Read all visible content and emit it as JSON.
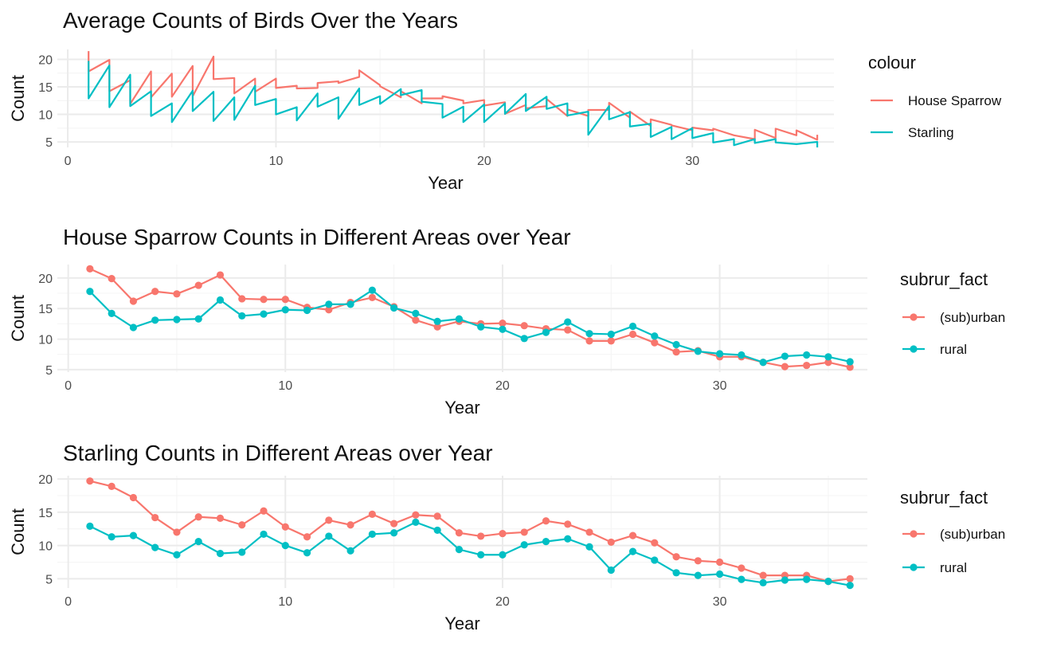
{
  "colors": {
    "red": "#F8766D",
    "teal": "#00BFC4",
    "grid_major": "#EBEBEB",
    "grid_minor": "#F4F4F4"
  },
  "chart_data": [
    {
      "type": "line",
      "title": "Average Counts of Birds Over the Years",
      "xlabel": "Year",
      "ylabel": "Count",
      "xlim": [
        -0.5,
        36.8
      ],
      "ylim": [
        4.0,
        21.8
      ],
      "xticks": [
        0,
        10,
        20,
        30
      ],
      "yticks": [
        5,
        10,
        15,
        20
      ],
      "legend_title": "colour",
      "legend_position": "right",
      "marker": "none",
      "series": [
        {
          "name": "House Sparrow",
          "color": "#F8766D",
          "points": [
            [
              1,
              21.5
            ],
            [
              1,
              17.8
            ],
            [
              2,
              19.9
            ],
            [
              2,
              14.2
            ],
            [
              3,
              16.2
            ],
            [
              3,
              11.9
            ],
            [
              4,
              17.8
            ],
            [
              4,
              13.1
            ],
            [
              5,
              17.4
            ],
            [
              5,
              13.2
            ],
            [
              6,
              18.8
            ],
            [
              6,
              13.3
            ],
            [
              7,
              20.5
            ],
            [
              7,
              16.4
            ],
            [
              8,
              16.6
            ],
            [
              8,
              13.8
            ],
            [
              9,
              16.5
            ],
            [
              9,
              14.1
            ],
            [
              10,
              16.5
            ],
            [
              10,
              14.8
            ],
            [
              11,
              15.2
            ],
            [
              11,
              14.7
            ],
            [
              12,
              14.8
            ],
            [
              12,
              15.7
            ],
            [
              13,
              16.0
            ],
            [
              13,
              15.7
            ],
            [
              14,
              16.8
            ],
            [
              14,
              18.0
            ],
            [
              15,
              15.3
            ],
            [
              15,
              15.1
            ],
            [
              16,
              13.1
            ],
            [
              16,
              14.2
            ],
            [
              17,
              12.0
            ],
            [
              17,
              12.9
            ],
            [
              18,
              12.9
            ],
            [
              18,
              13.3
            ],
            [
              19,
              12.5
            ],
            [
              19,
              12.0
            ],
            [
              20,
              12.6
            ],
            [
              20,
              11.6
            ],
            [
              21,
              12.2
            ],
            [
              21,
              10.1
            ],
            [
              22,
              11.7
            ],
            [
              22,
              11.1
            ],
            [
              23,
              11.5
            ],
            [
              23,
              12.8
            ],
            [
              24,
              9.7
            ],
            [
              24,
              10.9
            ],
            [
              25,
              9.7
            ],
            [
              25,
              10.8
            ],
            [
              26,
              10.8
            ],
            [
              26,
              12.1
            ],
            [
              27,
              9.4
            ],
            [
              27,
              10.5
            ],
            [
              28,
              7.9
            ],
            [
              28,
              9.1
            ],
            [
              29,
              8.1
            ],
            [
              29,
              8.0
            ],
            [
              30,
              7.1
            ],
            [
              30,
              7.6
            ],
            [
              31,
              7.1
            ],
            [
              31,
              7.4
            ],
            [
              32,
              6.2
            ],
            [
              32,
              6.2
            ],
            [
              33,
              5.5
            ],
            [
              33,
              7.2
            ],
            [
              34,
              5.7
            ],
            [
              34,
              7.4
            ],
            [
              35,
              6.2
            ],
            [
              35,
              7.1
            ],
            [
              36,
              5.4
            ],
            [
              36,
              6.3
            ]
          ]
        },
        {
          "name": "Starling",
          "color": "#00BFC4",
          "points": [
            [
              1,
              19.7
            ],
            [
              1,
              12.9
            ],
            [
              2,
              18.9
            ],
            [
              2,
              11.3
            ],
            [
              3,
              17.2
            ],
            [
              3,
              11.5
            ],
            [
              4,
              14.2
            ],
            [
              4,
              9.7
            ],
            [
              5,
              12.0
            ],
            [
              5,
              8.6
            ],
            [
              6,
              14.3
            ],
            [
              6,
              10.6
            ],
            [
              7,
              14.1
            ],
            [
              7,
              8.8
            ],
            [
              8,
              13.1
            ],
            [
              8,
              9.0
            ],
            [
              9,
              15.2
            ],
            [
              9,
              11.7
            ],
            [
              10,
              12.8
            ],
            [
              10,
              10.0
            ],
            [
              11,
              11.3
            ],
            [
              11,
              8.9
            ],
            [
              12,
              13.8
            ],
            [
              12,
              11.4
            ],
            [
              13,
              13.1
            ],
            [
              13,
              9.2
            ],
            [
              14,
              14.7
            ],
            [
              14,
              11.7
            ],
            [
              15,
              13.3
            ],
            [
              15,
              11.9
            ],
            [
              16,
              14.6
            ],
            [
              16,
              13.5
            ],
            [
              17,
              14.4
            ],
            [
              17,
              12.3
            ],
            [
              18,
              11.9
            ],
            [
              18,
              9.4
            ],
            [
              19,
              11.4
            ],
            [
              19,
              8.6
            ],
            [
              20,
              11.8
            ],
            [
              20,
              8.6
            ],
            [
              21,
              12.0
            ],
            [
              21,
              10.1
            ],
            [
              22,
              13.7
            ],
            [
              22,
              10.6
            ],
            [
              23,
              13.2
            ],
            [
              23,
              11.0
            ],
            [
              24,
              12.0
            ],
            [
              24,
              9.8
            ],
            [
              25,
              10.5
            ],
            [
              25,
              6.3
            ],
            [
              26,
              11.5
            ],
            [
              26,
              9.1
            ],
            [
              27,
              10.4
            ],
            [
              27,
              7.8
            ],
            [
              28,
              8.3
            ],
            [
              28,
              5.9
            ],
            [
              29,
              7.7
            ],
            [
              29,
              5.5
            ],
            [
              30,
              7.5
            ],
            [
              30,
              5.7
            ],
            [
              31,
              6.6
            ],
            [
              31,
              4.9
            ],
            [
              32,
              5.5
            ],
            [
              32,
              4.4
            ],
            [
              33,
              5.5
            ],
            [
              33,
              4.8
            ],
            [
              34,
              5.5
            ],
            [
              34,
              4.9
            ],
            [
              35,
              4.6
            ],
            [
              35,
              4.6
            ],
            [
              36,
              5.0
            ],
            [
              36,
              4.0
            ]
          ]
        }
      ]
    },
    {
      "type": "line",
      "title": "House Sparrow Counts in Different Areas over Year",
      "xlabel": "Year",
      "ylabel": "Count",
      "xlim": [
        -0.5,
        36.8
      ],
      "ylim": [
        4.6,
        22.2
      ],
      "xticks": [
        0,
        10,
        20,
        30
      ],
      "yticks": [
        5,
        10,
        15,
        20
      ],
      "legend_title": "subrur_fact",
      "legend_position": "right",
      "marker": "point",
      "series": [
        {
          "name": "(sub)urban",
          "color": "#F8766D",
          "x": [
            1,
            2,
            3,
            4,
            5,
            6,
            7,
            8,
            9,
            10,
            11,
            12,
            13,
            14,
            15,
            16,
            17,
            18,
            19,
            20,
            21,
            22,
            23,
            24,
            25,
            26,
            27,
            28,
            29,
            30,
            31,
            32,
            33,
            34,
            35,
            36
          ],
          "y": [
            21.5,
            19.9,
            16.2,
            17.8,
            17.4,
            18.8,
            20.5,
            16.6,
            16.5,
            16.5,
            15.2,
            14.8,
            16.0,
            16.8,
            15.3,
            13.1,
            12.0,
            12.9,
            12.5,
            12.6,
            12.2,
            11.7,
            11.5,
            9.7,
            9.7,
            10.8,
            9.4,
            7.9,
            8.1,
            7.1,
            7.1,
            6.2,
            5.5,
            5.7,
            6.2,
            5.4
          ]
        },
        {
          "name": "rural",
          "color": "#00BFC4",
          "x": [
            1,
            2,
            3,
            4,
            5,
            6,
            7,
            8,
            9,
            10,
            11,
            12,
            13,
            14,
            15,
            16,
            17,
            18,
            19,
            20,
            21,
            22,
            23,
            24,
            25,
            26,
            27,
            28,
            29,
            30,
            31,
            32,
            33,
            34,
            35,
            36
          ],
          "y": [
            17.8,
            14.2,
            11.9,
            13.1,
            13.2,
            13.3,
            16.4,
            13.8,
            14.1,
            14.8,
            14.7,
            15.7,
            15.7,
            18.0,
            15.1,
            14.2,
            12.9,
            13.3,
            12.0,
            11.6,
            10.1,
            11.1,
            12.8,
            10.9,
            10.8,
            12.1,
            10.5,
            9.1,
            8.0,
            7.6,
            7.4,
            6.2,
            7.2,
            7.4,
            7.1,
            6.3
          ]
        }
      ]
    },
    {
      "type": "line",
      "title": "Starling Counts in Different Areas over Year",
      "xlabel": "Year",
      "ylabel": "Count",
      "xlim": [
        -0.5,
        36.8
      ],
      "ylim": [
        3.6,
        20.5
      ],
      "xticks": [
        0,
        10,
        20,
        30
      ],
      "yticks": [
        5,
        10,
        15,
        20
      ],
      "legend_title": "subrur_fact",
      "legend_position": "right",
      "marker": "point",
      "series": [
        {
          "name": "(sub)urban",
          "color": "#F8766D",
          "x": [
            1,
            2,
            3,
            4,
            5,
            6,
            7,
            8,
            9,
            10,
            11,
            12,
            13,
            14,
            15,
            16,
            17,
            18,
            19,
            20,
            21,
            22,
            23,
            24,
            25,
            26,
            27,
            28,
            29,
            30,
            31,
            32,
            33,
            34,
            35,
            36
          ],
          "y": [
            19.7,
            18.9,
            17.2,
            14.2,
            12.0,
            14.3,
            14.1,
            13.1,
            15.2,
            12.8,
            11.3,
            13.8,
            13.1,
            14.7,
            13.3,
            14.6,
            14.4,
            11.9,
            11.4,
            11.8,
            12.0,
            13.7,
            13.2,
            12.0,
            10.5,
            11.5,
            10.4,
            8.3,
            7.7,
            7.5,
            6.6,
            5.5,
            5.5,
            5.5,
            4.6,
            5.0
          ]
        },
        {
          "name": "rural",
          "color": "#00BFC4",
          "x": [
            1,
            2,
            3,
            4,
            5,
            6,
            7,
            8,
            9,
            10,
            11,
            12,
            13,
            14,
            15,
            16,
            17,
            18,
            19,
            20,
            21,
            22,
            23,
            24,
            25,
            26,
            27,
            28,
            29,
            30,
            31,
            32,
            33,
            34,
            35,
            36
          ],
          "y": [
            12.9,
            11.3,
            11.5,
            9.7,
            8.6,
            10.6,
            8.8,
            9.0,
            11.7,
            10.0,
            8.9,
            11.4,
            9.2,
            11.7,
            11.9,
            13.5,
            12.3,
            9.4,
            8.6,
            8.6,
            10.1,
            10.6,
            11.0,
            9.8,
            6.3,
            9.1,
            7.8,
            5.9,
            5.5,
            5.7,
            4.9,
            4.4,
            4.8,
            4.9,
            4.6,
            4.0
          ]
        }
      ]
    }
  ]
}
